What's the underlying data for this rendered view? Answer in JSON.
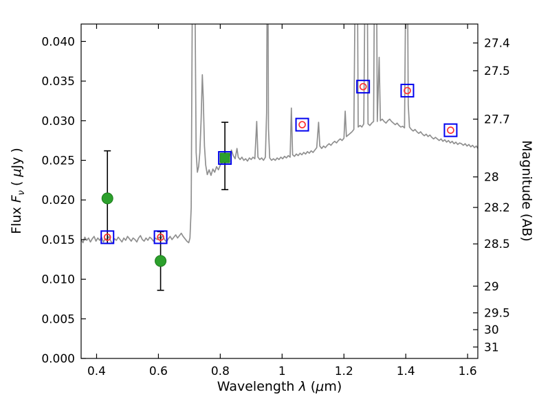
{
  "figure": {
    "background": "#ffffff"
  },
  "chart_data": {
    "type": "line+scatter",
    "title": "",
    "xlabel_parts": {
      "prefix": "Wavelength ",
      "lambda": "λ",
      "open": " (",
      "mu": "μ",
      "close": "m)"
    },
    "ylabel_left_parts": {
      "prefix": "Flux ",
      "sym": "F",
      "sub": "ν",
      "unit_open": " ( ",
      "mu": "μ",
      "unit_close": "Jy )"
    },
    "ylabel_right": "Magnitude (AB)",
    "x_range": [
      0.35,
      1.633
    ],
    "y_range": [
      0.0,
      0.0422
    ],
    "mag_zero_point": 23.9,
    "grid": false,
    "legend": "none",
    "x_ticks": [
      {
        "v": 0.4,
        "label": "0.4"
      },
      {
        "v": 0.6,
        "label": "0.6"
      },
      {
        "v": 0.8,
        "label": "0.8"
      },
      {
        "v": 1.0,
        "label": "1"
      },
      {
        "v": 1.2,
        "label": "1.2"
      },
      {
        "v": 1.4,
        "label": "1.4"
      },
      {
        "v": 1.6,
        "label": "1.6"
      }
    ],
    "y_ticks_left": [
      {
        "v": 0.0,
        "label": "0.000"
      },
      {
        "v": 0.005,
        "label": "0.005"
      },
      {
        "v": 0.01,
        "label": "0.010"
      },
      {
        "v": 0.015,
        "label": "0.015"
      },
      {
        "v": 0.02,
        "label": "0.020"
      },
      {
        "v": 0.025,
        "label": "0.025"
      },
      {
        "v": 0.03,
        "label": "0.030"
      },
      {
        "v": 0.035,
        "label": "0.035"
      },
      {
        "v": 0.04,
        "label": "0.040"
      }
    ],
    "y_ticks_right": [
      {
        "mag": 27.4,
        "label": "27.4"
      },
      {
        "mag": 27.5,
        "label": "27.5"
      },
      {
        "mag": 27.7,
        "label": "27.7"
      },
      {
        "mag": 28.0,
        "label": "28"
      },
      {
        "mag": 28.2,
        "label": "28.2"
      },
      {
        "mag": 28.5,
        "label": "28.5"
      },
      {
        "mag": 29.0,
        "label": "29"
      },
      {
        "mag": 29.5,
        "label": "29.5"
      },
      {
        "mag": 30.0,
        "label": "30"
      },
      {
        "mag": 31.0,
        "label": "31"
      }
    ],
    "colors": {
      "spectrum": "#8f8f8f",
      "error_bar": "#000000",
      "green_marker": "#2ca02c",
      "green_edge": "#1a7a1a",
      "blue_square": "#0000ee",
      "red_marker": "#ff3030",
      "axis": "#000000"
    },
    "marker_sizes": {
      "square_half": 9,
      "circle_r": 8,
      "green_square_half": 7,
      "red_r": 4.5,
      "cap_half": 5
    },
    "green_points": [
      {
        "x": 0.435,
        "y": 0.0202,
        "ylo": 0.0145,
        "yhi": 0.0262,
        "marker": "circle"
      },
      {
        "x": 0.607,
        "y": 0.0123,
        "ylo": 0.0086,
        "yhi": 0.016,
        "marker": "circle"
      },
      {
        "x": 0.815,
        "y": 0.0253,
        "ylo": 0.0213,
        "yhi": 0.0298,
        "marker": "square"
      }
    ],
    "blue_squares": [
      {
        "x": 0.435,
        "y": 0.0153,
        "red": true
      },
      {
        "x": 0.607,
        "y": 0.0153,
        "red": true
      },
      {
        "x": 0.815,
        "y": 0.0253,
        "red": false
      },
      {
        "x": 1.065,
        "y": 0.0295,
        "red": true
      },
      {
        "x": 1.262,
        "y": 0.0343,
        "red": true
      },
      {
        "x": 1.405,
        "y": 0.0338,
        "red": true
      },
      {
        "x": 1.545,
        "y": 0.0288,
        "red": true
      }
    ],
    "spectrum": [
      [
        0.35,
        0.015
      ],
      [
        0.356,
        0.0146
      ],
      [
        0.362,
        0.0153
      ],
      [
        0.368,
        0.0149
      ],
      [
        0.374,
        0.0152
      ],
      [
        0.38,
        0.0147
      ],
      [
        0.386,
        0.0151
      ],
      [
        0.392,
        0.0154
      ],
      [
        0.398,
        0.0148
      ],
      [
        0.404,
        0.0152
      ],
      [
        0.41,
        0.0149
      ],
      [
        0.416,
        0.0153
      ],
      [
        0.422,
        0.0147
      ],
      [
        0.428,
        0.0151
      ],
      [
        0.434,
        0.015
      ],
      [
        0.44,
        0.0154
      ],
      [
        0.446,
        0.0148
      ],
      [
        0.452,
        0.0145
      ],
      [
        0.458,
        0.0151
      ],
      [
        0.464,
        0.0149
      ],
      [
        0.47,
        0.0153
      ],
      [
        0.476,
        0.015
      ],
      [
        0.482,
        0.0147
      ],
      [
        0.488,
        0.0152
      ],
      [
        0.494,
        0.0149
      ],
      [
        0.5,
        0.0154
      ],
      [
        0.506,
        0.0151
      ],
      [
        0.512,
        0.0148
      ],
      [
        0.518,
        0.0152
      ],
      [
        0.524,
        0.015
      ],
      [
        0.53,
        0.0147
      ],
      [
        0.536,
        0.0152
      ],
      [
        0.542,
        0.0155
      ],
      [
        0.548,
        0.015
      ],
      [
        0.554,
        0.0148
      ],
      [
        0.56,
        0.0152
      ],
      [
        0.566,
        0.0149
      ],
      [
        0.572,
        0.0153
      ],
      [
        0.578,
        0.0151
      ],
      [
        0.584,
        0.0148
      ],
      [
        0.59,
        0.0152
      ],
      [
        0.596,
        0.015
      ],
      [
        0.602,
        0.0153
      ],
      [
        0.608,
        0.0151
      ],
      [
        0.614,
        0.0155
      ],
      [
        0.62,
        0.015
      ],
      [
        0.626,
        0.0147
      ],
      [
        0.632,
        0.0151
      ],
      [
        0.638,
        0.0154
      ],
      [
        0.644,
        0.015
      ],
      [
        0.65,
        0.0153
      ],
      [
        0.656,
        0.0156
      ],
      [
        0.662,
        0.0152
      ],
      [
        0.668,
        0.0155
      ],
      [
        0.674,
        0.0158
      ],
      [
        0.68,
        0.0154
      ],
      [
        0.686,
        0.0151
      ],
      [
        0.692,
        0.0148
      ],
      [
        0.698,
        0.0146
      ],
      [
        0.702,
        0.0152
      ],
      [
        0.706,
        0.019
      ],
      [
        0.71,
        0.048
      ],
      [
        0.714,
        0.06
      ],
      [
        0.718,
        0.047
      ],
      [
        0.722,
        0.026
      ],
      [
        0.726,
        0.0235
      ],
      [
        0.73,
        0.0242
      ],
      [
        0.734,
        0.026
      ],
      [
        0.738,
        0.03
      ],
      [
        0.742,
        0.0358
      ],
      [
        0.745,
        0.033
      ],
      [
        0.749,
        0.0268
      ],
      [
        0.753,
        0.0244
      ],
      [
        0.758,
        0.0232
      ],
      [
        0.764,
        0.0238
      ],
      [
        0.77,
        0.0231
      ],
      [
        0.776,
        0.0239
      ],
      [
        0.782,
        0.0235
      ],
      [
        0.788,
        0.0242
      ],
      [
        0.794,
        0.0238
      ],
      [
        0.8,
        0.0244
      ],
      [
        0.806,
        0.0247
      ],
      [
        0.812,
        0.025
      ],
      [
        0.818,
        0.0253
      ],
      [
        0.824,
        0.025
      ],
      [
        0.83,
        0.0255
      ],
      [
        0.836,
        0.0263
      ],
      [
        0.842,
        0.0256
      ],
      [
        0.848,
        0.0252
      ],
      [
        0.854,
        0.0265
      ],
      [
        0.858,
        0.0254
      ],
      [
        0.864,
        0.0251
      ],
      [
        0.87,
        0.0254
      ],
      [
        0.876,
        0.025
      ],
      [
        0.882,
        0.0252
      ],
      [
        0.888,
        0.0249
      ],
      [
        0.894,
        0.0253
      ],
      [
        0.9,
        0.0251
      ],
      [
        0.906,
        0.0254
      ],
      [
        0.912,
        0.0252
      ],
      [
        0.918,
        0.0299
      ],
      [
        0.922,
        0.0254
      ],
      [
        0.928,
        0.0251
      ],
      [
        0.934,
        0.0253
      ],
      [
        0.94,
        0.025
      ],
      [
        0.946,
        0.0254
      ],
      [
        0.95,
        0.031
      ],
      [
        0.953,
        0.06
      ],
      [
        0.956,
        0.029
      ],
      [
        0.96,
        0.0253
      ],
      [
        0.966,
        0.025
      ],
      [
        0.972,
        0.0252
      ],
      [
        0.978,
        0.025
      ],
      [
        0.984,
        0.0253
      ],
      [
        0.99,
        0.0251
      ],
      [
        0.996,
        0.0254
      ],
      [
        1.002,
        0.0252
      ],
      [
        1.008,
        0.0255
      ],
      [
        1.014,
        0.0253
      ],
      [
        1.02,
        0.0256
      ],
      [
        1.026,
        0.0254
      ],
      [
        1.03,
        0.0316
      ],
      [
        1.034,
        0.0257
      ],
      [
        1.04,
        0.0255
      ],
      [
        1.046,
        0.0258
      ],
      [
        1.052,
        0.0256
      ],
      [
        1.058,
        0.0259
      ],
      [
        1.064,
        0.0257
      ],
      [
        1.07,
        0.026
      ],
      [
        1.076,
        0.0258
      ],
      [
        1.082,
        0.0261
      ],
      [
        1.088,
        0.0259
      ],
      [
        1.094,
        0.0262
      ],
      [
        1.1,
        0.026
      ],
      [
        1.106,
        0.0263
      ],
      [
        1.112,
        0.0266
      ],
      [
        1.118,
        0.0298
      ],
      [
        1.122,
        0.0268
      ],
      [
        1.128,
        0.0265
      ],
      [
        1.134,
        0.0268
      ],
      [
        1.14,
        0.0266
      ],
      [
        1.146,
        0.0269
      ],
      [
        1.152,
        0.0271
      ],
      [
        1.158,
        0.0269
      ],
      [
        1.164,
        0.0272
      ],
      [
        1.17,
        0.0274
      ],
      [
        1.176,
        0.0272
      ],
      [
        1.182,
        0.0275
      ],
      [
        1.188,
        0.0277
      ],
      [
        1.194,
        0.0275
      ],
      [
        1.2,
        0.0278
      ],
      [
        1.204,
        0.0312
      ],
      [
        1.208,
        0.028
      ],
      [
        1.214,
        0.0282
      ],
      [
        1.22,
        0.0284
      ],
      [
        1.226,
        0.0286
      ],
      [
        1.232,
        0.0289
      ],
      [
        1.238,
        0.055
      ],
      [
        1.242,
        0.06
      ],
      [
        1.246,
        0.0292
      ],
      [
        1.252,
        0.0294
      ],
      [
        1.258,
        0.0292
      ],
      [
        1.264,
        0.0296
      ],
      [
        1.27,
        0.055
      ],
      [
        1.274,
        0.06
      ],
      [
        1.278,
        0.0296
      ],
      [
        1.284,
        0.0294
      ],
      [
        1.29,
        0.0297
      ],
      [
        1.296,
        0.0299
      ],
      [
        1.3,
        0.056
      ],
      [
        1.304,
        0.06
      ],
      [
        1.308,
        0.0299
      ],
      [
        1.314,
        0.038
      ],
      [
        1.318,
        0.03
      ],
      [
        1.324,
        0.0302
      ],
      [
        1.33,
        0.0299
      ],
      [
        1.336,
        0.0297
      ],
      [
        1.342,
        0.03
      ],
      [
        1.348,
        0.0302
      ],
      [
        1.354,
        0.0299
      ],
      [
        1.36,
        0.0297
      ],
      [
        1.366,
        0.0295
      ],
      [
        1.372,
        0.0297
      ],
      [
        1.378,
        0.0294
      ],
      [
        1.384,
        0.0292
      ],
      [
        1.39,
        0.0293
      ],
      [
        1.396,
        0.0291
      ],
      [
        1.4,
        0.048
      ],
      [
        1.404,
        0.06
      ],
      [
        1.408,
        0.032
      ],
      [
        1.412,
        0.0292
      ],
      [
        1.418,
        0.0289
      ],
      [
        1.424,
        0.0287
      ],
      [
        1.43,
        0.0289
      ],
      [
        1.436,
        0.0286
      ],
      [
        1.442,
        0.0284
      ],
      [
        1.448,
        0.0286
      ],
      [
        1.454,
        0.0283
      ],
      [
        1.46,
        0.0281
      ],
      [
        1.466,
        0.0283
      ],
      [
        1.472,
        0.028
      ],
      [
        1.478,
        0.0282
      ],
      [
        1.484,
        0.0279
      ],
      [
        1.49,
        0.0277
      ],
      [
        1.496,
        0.0279
      ],
      [
        1.502,
        0.0277
      ],
      [
        1.508,
        0.0275
      ],
      [
        1.514,
        0.0277
      ],
      [
        1.52,
        0.0274
      ],
      [
        1.526,
        0.0276
      ],
      [
        1.532,
        0.0273
      ],
      [
        1.538,
        0.0275
      ],
      [
        1.544,
        0.0272
      ],
      [
        1.55,
        0.0274
      ],
      [
        1.556,
        0.0271
      ],
      [
        1.562,
        0.0273
      ],
      [
        1.568,
        0.027
      ],
      [
        1.574,
        0.0272
      ],
      [
        1.58,
        0.0271
      ],
      [
        1.586,
        0.0269
      ],
      [
        1.592,
        0.0271
      ],
      [
        1.598,
        0.0268
      ],
      [
        1.604,
        0.027
      ],
      [
        1.61,
        0.0267
      ],
      [
        1.616,
        0.0269
      ],
      [
        1.622,
        0.0266
      ],
      [
        1.628,
        0.0268
      ],
      [
        1.633,
        0.0265
      ]
    ]
  }
}
